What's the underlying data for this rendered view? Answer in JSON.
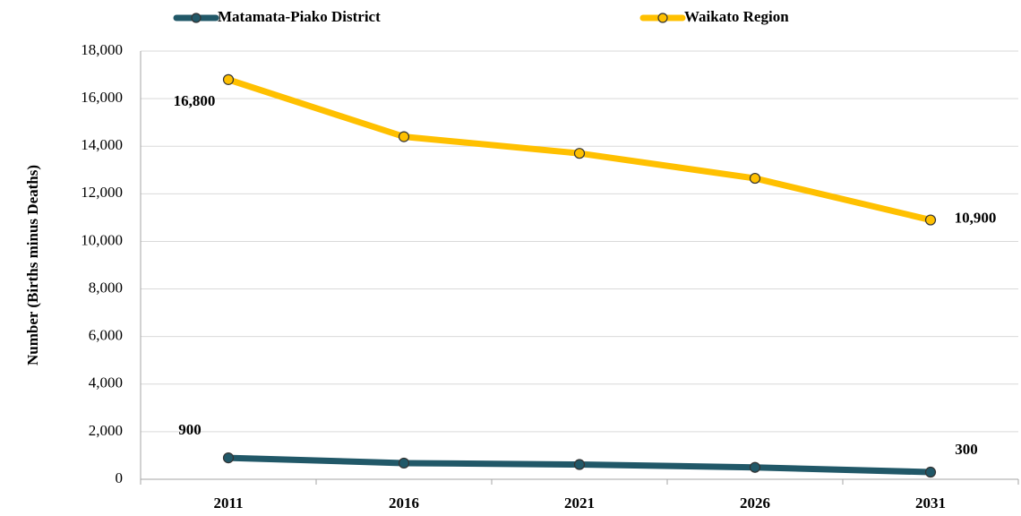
{
  "chart_data": {
    "type": "line",
    "y_label": "Number (Births minus Deaths)",
    "categories": [
      "2011",
      "2016",
      "2021",
      "2026",
      "2031"
    ],
    "series": [
      {
        "name": "Matamata-Piako District",
        "color": "#215868",
        "values": [
          900,
          680,
          620,
          500,
          300
        ],
        "value_labels": [
          "900",
          null,
          null,
          null,
          "300"
        ]
      },
      {
        "name": "Waikato Region",
        "color": "#FFC000",
        "values": [
          16800,
          14400,
          13700,
          12650,
          10900
        ],
        "value_labels": [
          "16,800",
          null,
          null,
          null,
          "10,900"
        ]
      }
    ],
    "ylim": [
      0,
      18000
    ],
    "yticks": [
      0,
      {
        "value": 2000,
        "label": "2,000"
      },
      {
        "value": 4000,
        "label": "4,000"
      },
      {
        "value": 6000,
        "label": "6,000"
      },
      {
        "value": 8000,
        "label": "8,000"
      },
      {
        "value": 10000,
        "label": "10,000"
      },
      {
        "value": 12000,
        "label": "12,000"
      },
      {
        "value": 14000,
        "label": "14,000"
      },
      {
        "value": 16000,
        "label": "16,000"
      },
      {
        "value": 18000,
        "label": "18,000"
      }
    ],
    "grid": true
  }
}
